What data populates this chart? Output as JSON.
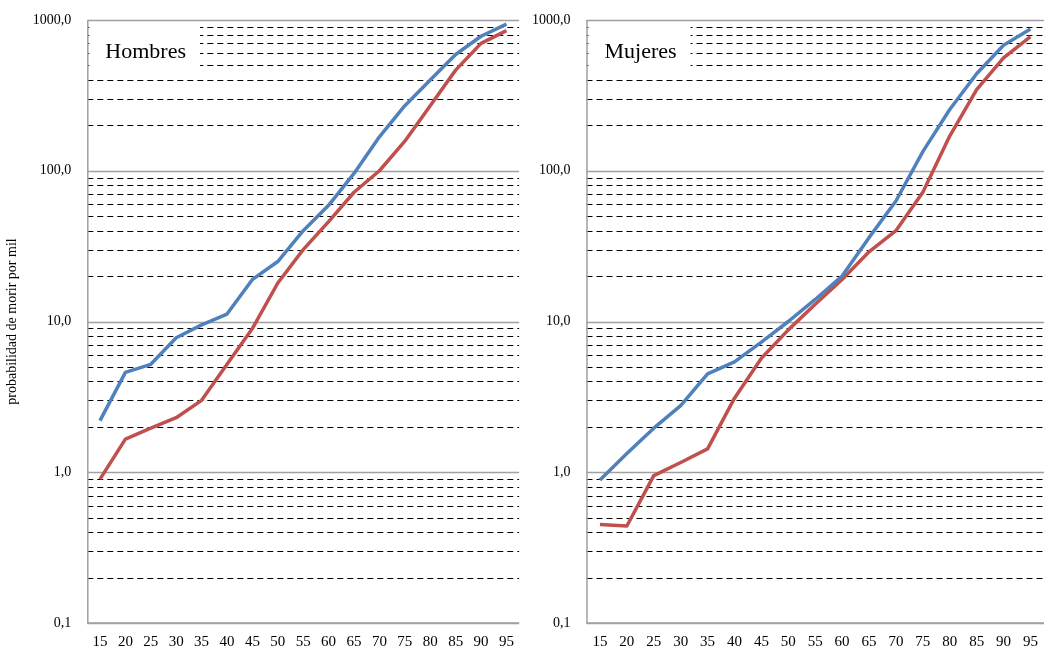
{
  "chart_data": [
    {
      "type": "line",
      "title": "Hombres",
      "ylabel": "probabilidad de morir por mil",
      "log": "y",
      "grid": "y",
      "marker": "none",
      "line_style": "solid",
      "categories": [
        "15",
        "20",
        "25",
        "30",
        "35",
        "40",
        "45",
        "50",
        "55",
        "60",
        "65",
        "70",
        "75",
        "80",
        "85",
        "90",
        "95"
      ],
      "ylim": [
        0.1,
        1000
      ],
      "yticks": [
        {
          "value": 0.1,
          "label": "0,1"
        },
        {
          "value": 0.2,
          "label": null
        },
        {
          "value": 0.3,
          "label": null
        },
        {
          "value": 0.4,
          "label": null
        },
        {
          "value": 0.5,
          "label": null
        },
        {
          "value": 0.6,
          "label": null
        },
        {
          "value": 0.7,
          "label": null
        },
        {
          "value": 0.8,
          "label": null
        },
        {
          "value": 0.9,
          "label": null
        },
        {
          "value": 1,
          "label": "1,0"
        },
        {
          "value": 2,
          "label": null
        },
        {
          "value": 3,
          "label": null
        },
        {
          "value": 4,
          "label": null
        },
        {
          "value": 5,
          "label": null
        },
        {
          "value": 6,
          "label": null
        },
        {
          "value": 7,
          "label": null
        },
        {
          "value": 8,
          "label": null
        },
        {
          "value": 9,
          "label": null
        },
        {
          "value": 10,
          "label": "10,0"
        },
        {
          "value": 20,
          "label": null
        },
        {
          "value": 30,
          "label": null
        },
        {
          "value": 40,
          "label": null
        },
        {
          "value": 50,
          "label": null
        },
        {
          "value": 60,
          "label": null
        },
        {
          "value": 70,
          "label": null
        },
        {
          "value": 80,
          "label": null
        },
        {
          "value": 90,
          "label": null
        },
        {
          "value": 100,
          "label": "100,0"
        },
        {
          "value": 200,
          "label": null
        },
        {
          "value": 300,
          "label": null
        },
        {
          "value": 400,
          "label": null
        },
        {
          "value": 500,
          "label": null
        },
        {
          "value": 600,
          "label": null
        },
        {
          "value": 700,
          "label": null
        },
        {
          "value": 800,
          "label": null
        },
        {
          "value": 900,
          "label": null
        },
        {
          "value": 1000,
          "label": "1000,0"
        }
      ],
      "series": [
        {
          "color": "#4f81bd",
          "values": [
            2.2,
            4.6,
            5.2,
            7.8,
            9.5,
            11.2,
            19,
            25,
            40,
            59,
            96,
            168,
            270,
            400,
            590,
            780,
            940
          ]
        },
        {
          "color": "#c0504d",
          "values": [
            0.9,
            1.66,
            1.96,
            2.3,
            3.0,
            5.2,
            9.0,
            18,
            30,
            46,
            72,
            100,
            157,
            270,
            465,
            700,
            850
          ]
        }
      ]
    },
    {
      "type": "line",
      "title": "Mujeres",
      "log": "y",
      "grid": "y",
      "marker": "none",
      "line_style": "solid",
      "categories": [
        "15",
        "20",
        "25",
        "30",
        "35",
        "40",
        "45",
        "50",
        "55",
        "60",
        "65",
        "70",
        "75",
        "80",
        "85",
        "90",
        "95"
      ],
      "ylim": [
        0.1,
        1000
      ],
      "yticks": [
        {
          "value": 0.1,
          "label": "0,1"
        },
        {
          "value": 0.2,
          "label": null
        },
        {
          "value": 0.3,
          "label": null
        },
        {
          "value": 0.4,
          "label": null
        },
        {
          "value": 0.5,
          "label": null
        },
        {
          "value": 0.6,
          "label": null
        },
        {
          "value": 0.7,
          "label": null
        },
        {
          "value": 0.8,
          "label": null
        },
        {
          "value": 0.9,
          "label": null
        },
        {
          "value": 1,
          "label": "1,0"
        },
        {
          "value": 2,
          "label": null
        },
        {
          "value": 3,
          "label": null
        },
        {
          "value": 4,
          "label": null
        },
        {
          "value": 5,
          "label": null
        },
        {
          "value": 6,
          "label": null
        },
        {
          "value": 7,
          "label": null
        },
        {
          "value": 8,
          "label": null
        },
        {
          "value": 9,
          "label": null
        },
        {
          "value": 10,
          "label": "10,0"
        },
        {
          "value": 20,
          "label": null
        },
        {
          "value": 30,
          "label": null
        },
        {
          "value": 40,
          "label": null
        },
        {
          "value": 50,
          "label": null
        },
        {
          "value": 60,
          "label": null
        },
        {
          "value": 70,
          "label": null
        },
        {
          "value": 80,
          "label": null
        },
        {
          "value": 90,
          "label": null
        },
        {
          "value": 100,
          "label": "100,0"
        },
        {
          "value": 200,
          "label": null
        },
        {
          "value": 300,
          "label": null
        },
        {
          "value": 400,
          "label": null
        },
        {
          "value": 500,
          "label": null
        },
        {
          "value": 600,
          "label": null
        },
        {
          "value": 700,
          "label": null
        },
        {
          "value": 800,
          "label": null
        },
        {
          "value": 900,
          "label": null
        },
        {
          "value": 1000,
          "label": "1000,0"
        }
      ],
      "series": [
        {
          "color": "#4f81bd",
          "values": [
            0.89,
            1.33,
            1.96,
            2.77,
            4.5,
            5.4,
            7.3,
            10,
            14,
            20,
            36,
            63,
            134,
            255,
            440,
            680,
            870
          ]
        },
        {
          "color": "#c0504d",
          "values": [
            0.45,
            0.44,
            0.95,
            1.16,
            1.43,
            3.1,
            5.7,
            8.8,
            13,
            19,
            29,
            40,
            72,
            170,
            345,
            560,
            775
          ]
        }
      ]
    }
  ]
}
